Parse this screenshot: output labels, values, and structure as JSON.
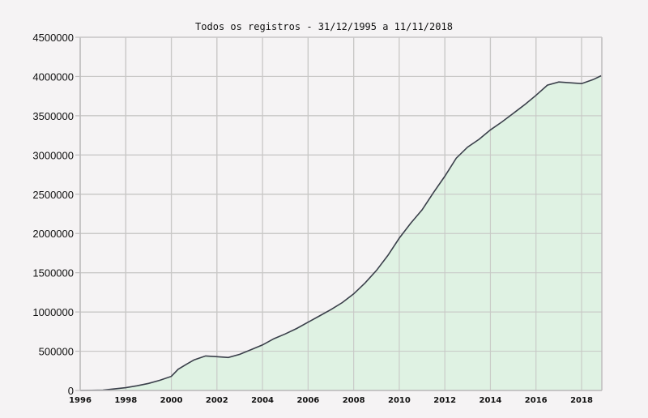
{
  "chart_data": {
    "type": "area",
    "title": "Todos os registros - 31/12/1995 a 11/11/2018",
    "xlabel": "",
    "ylabel": "",
    "xlim": [
      1996,
      2018.86
    ],
    "ylim": [
      0,
      4500000
    ],
    "grid": true,
    "legend": null,
    "x_ticks": [
      "1996",
      "1998",
      "2000",
      "2002",
      "2004",
      "2006",
      "2008",
      "2010",
      "2012",
      "2014",
      "2016",
      "2018"
    ],
    "y_ticks": [
      "0",
      "500000",
      "1000000",
      "1500000",
      "2000000",
      "2500000",
      "3000000",
      "3500000",
      "4000000",
      "4500000"
    ],
    "series": [
      {
        "name": "Todos os registros",
        "line_color": "#3a3f4a",
        "fill_color": "#dff2e3",
        "x": [
          1996,
          1997,
          1997.5,
          1998,
          1998.5,
          1999,
          1999.5,
          2000,
          2000.3,
          2000.7,
          2001,
          2001.5,
          2002,
          2002.5,
          2003,
          2003.5,
          2004,
          2004.5,
          2005,
          2005.5,
          2006,
          2006.5,
          2007,
          2007.5,
          2008,
          2008.5,
          2009,
          2009.5,
          2010,
          2010.5,
          2011,
          2011.5,
          2012,
          2012.5,
          2013,
          2013.5,
          2014,
          2014.5,
          2015,
          2015.5,
          2016,
          2016.5,
          2017,
          2017.5,
          2018,
          2018.5,
          2018.86
        ],
        "values": [
          0,
          5000,
          20000,
          35000,
          60000,
          90000,
          130000,
          180000,
          270000,
          340000,
          390000,
          440000,
          430000,
          420000,
          460000,
          520000,
          580000,
          660000,
          720000,
          790000,
          870000,
          950000,
          1030000,
          1120000,
          1230000,
          1370000,
          1530000,
          1720000,
          1940000,
          2130000,
          2300000,
          2520000,
          2730000,
          2960000,
          3100000,
          3200000,
          3320000,
          3420000,
          3530000,
          3640000,
          3760000,
          3890000,
          3930000,
          3920000,
          3910000,
          3960000,
          4010000
        ]
      }
    ]
  }
}
